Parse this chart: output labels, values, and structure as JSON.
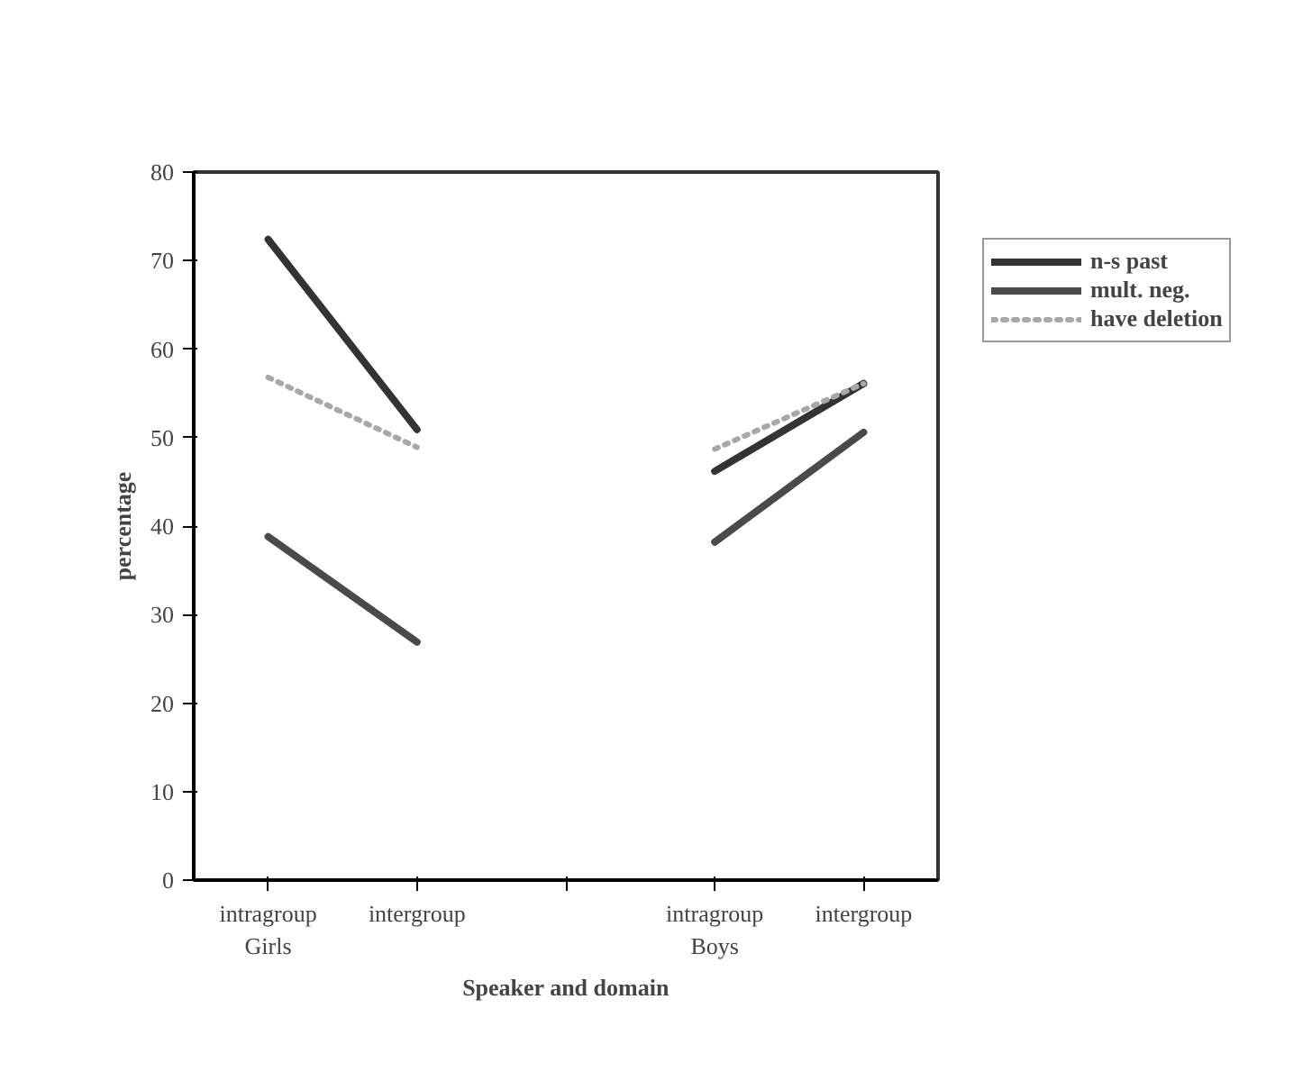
{
  "chart_data": {
    "type": "line",
    "xlabel": "Speaker and domain",
    "ylabel": "percentage",
    "categories": [
      "intragroup\nGirls",
      "intergroup",
      null,
      "intragroup\nBoys",
      "intergroup"
    ],
    "series": [
      {
        "name": "n-s past",
        "color": "#333333",
        "values": [
          72.4,
          50.9,
          null,
          46.2,
          56.1
        ]
      },
      {
        "name": "mult. neg.",
        "color": "#4a4a4a",
        "values": [
          38.8,
          26.9,
          null,
          38.2,
          50.6
        ]
      },
      {
        "name": "have deletion",
        "color": "#a8a8a8",
        "line_style": "dotted",
        "values": [
          56.8,
          48.9,
          null,
          48.7,
          56.1
        ]
      }
    ],
    "ylim": [
      0,
      80
    ],
    "yticks": [
      0,
      10,
      20,
      30,
      40,
      50,
      60,
      70,
      80
    ],
    "grid": false,
    "legend": "top right",
    "marker": "none"
  }
}
